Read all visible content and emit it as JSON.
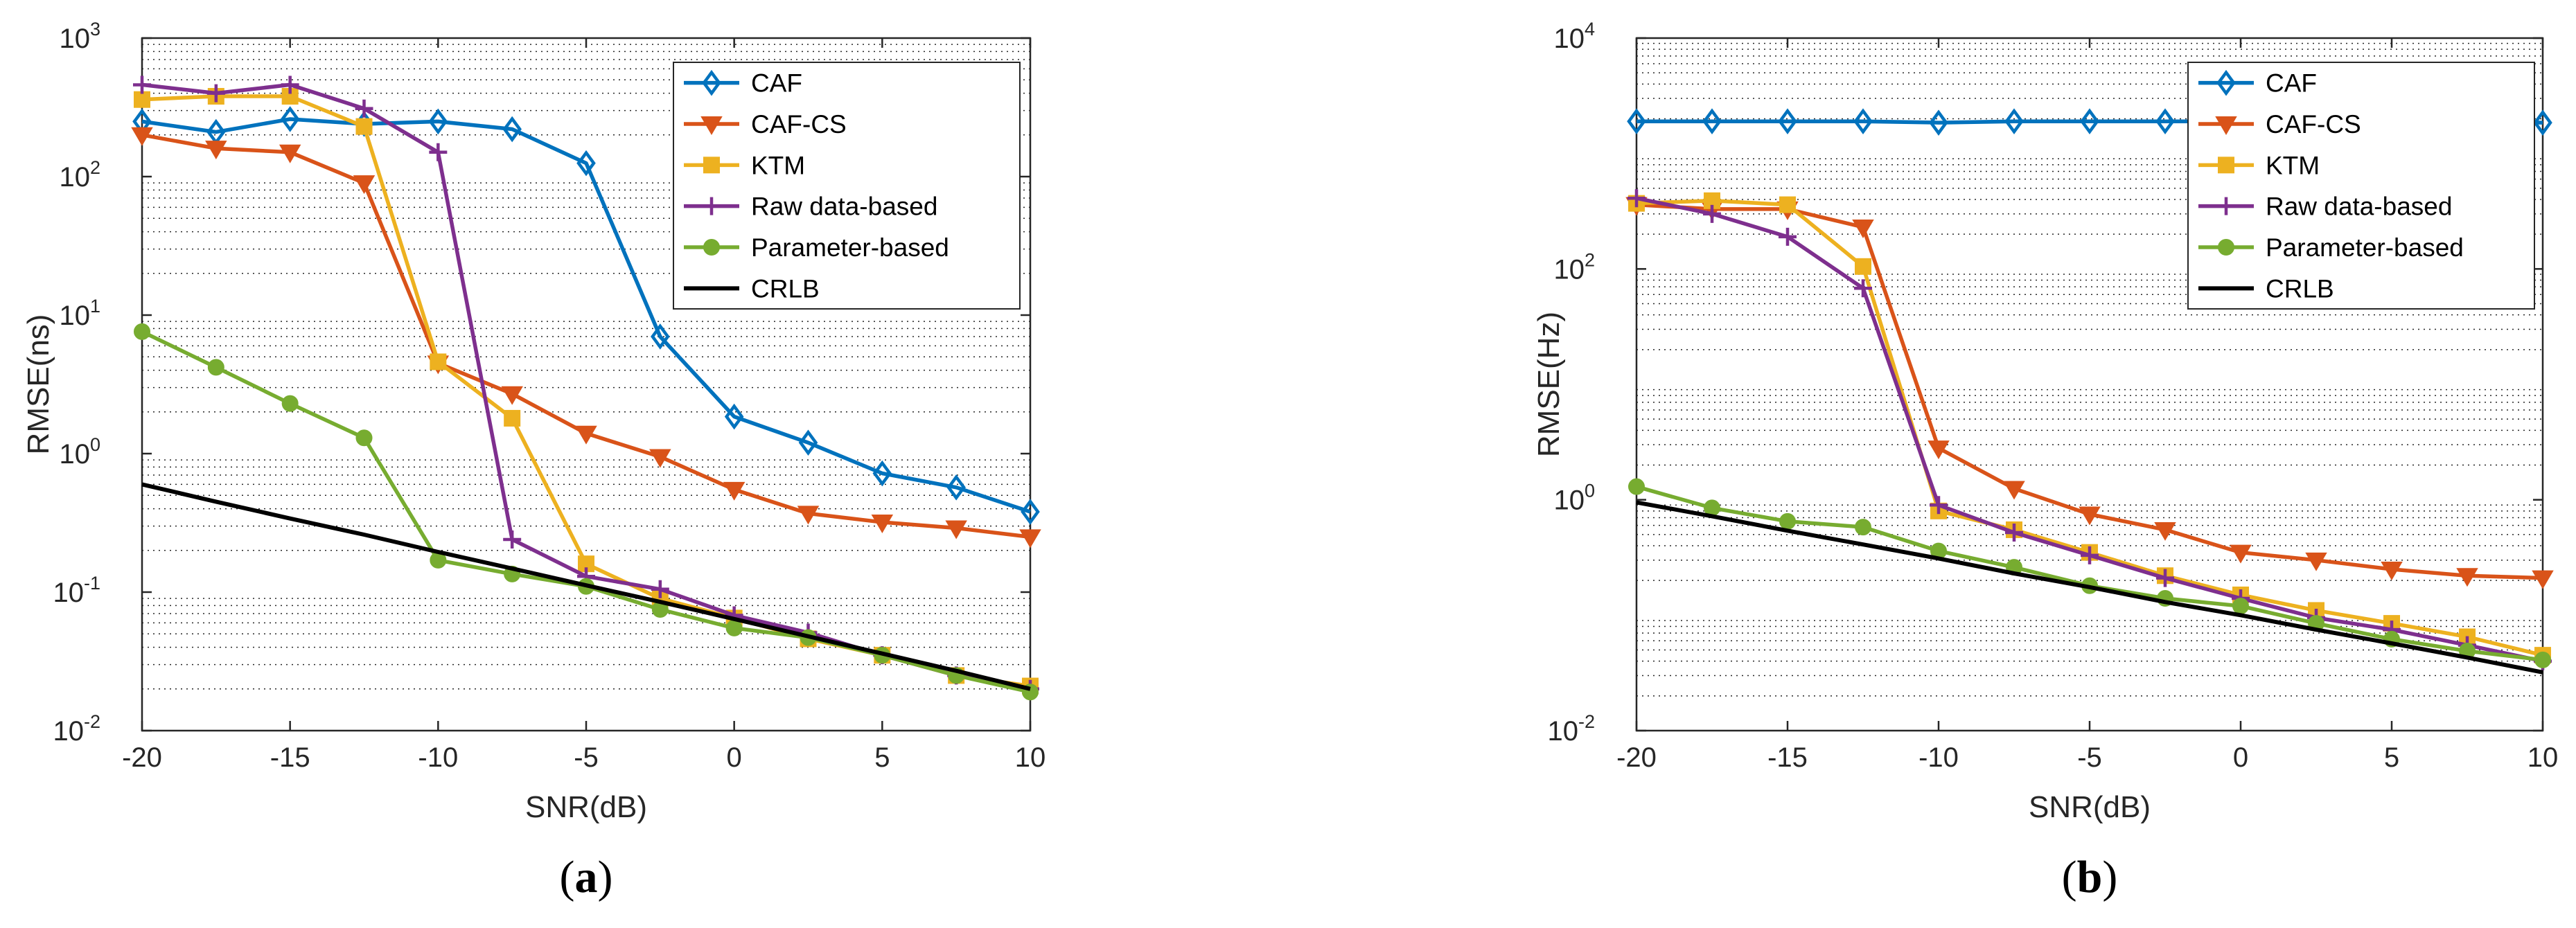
{
  "figure": {
    "panels": [
      "a",
      "b"
    ]
  },
  "chart_data": [
    {
      "type": "line",
      "panel": "a",
      "caption": "a",
      "xlabel": "SNR(dB)",
      "ylabel": "RMSE(ns)",
      "yscale": "log",
      "xlim": [
        -20,
        10
      ],
      "ylim": [
        0.01,
        1000
      ],
      "xticks": [
        "-20",
        "-15",
        "-10",
        "-5",
        "0",
        "5",
        "10"
      ],
      "yticks": [
        {
          "base": "10",
          "exp": "-2"
        },
        {
          "base": "10",
          "exp": "-1"
        },
        {
          "base": "10",
          "exp": "0"
        },
        {
          "base": "10",
          "exp": "1"
        },
        {
          "base": "10",
          "exp": "2"
        },
        {
          "base": "10",
          "exp": "3"
        }
      ],
      "grid": "minor dotted",
      "legend_position": "top-right",
      "x": [
        -20,
        -17.5,
        -15,
        -12.5,
        -10,
        -7.5,
        -5,
        -2.5,
        0,
        2.5,
        5,
        7.5,
        10
      ],
      "series": [
        {
          "name": "CAF",
          "color": "#0072BD",
          "marker": "diamond",
          "values": [
            250,
            210,
            260,
            240,
            250,
            220,
            125,
            7,
            1.85,
            1.2,
            0.72,
            0.57,
            0.38
          ]
        },
        {
          "name": "CAF-CS",
          "color": "#D95319",
          "marker": "triangle-down",
          "values": [
            200,
            160,
            150,
            90,
            4.5,
            2.7,
            1.4,
            0.95,
            0.55,
            0.37,
            0.32,
            0.29,
            0.25
          ]
        },
        {
          "name": "KTM",
          "color": "#EDB120",
          "marker": "square",
          "values": [
            360,
            380,
            380,
            230,
            4.6,
            1.8,
            0.16,
            0.09,
            0.065,
            0.046,
            0.035,
            0.025,
            0.021
          ]
        },
        {
          "name": "Raw data-based",
          "color": "#7E2F8E",
          "marker": "plus",
          "values": [
            460,
            400,
            460,
            310,
            150,
            0.24,
            0.13,
            0.105,
            0.068,
            0.051,
            0.035,
            0.025,
            0.02
          ]
        },
        {
          "name": "Parameter-based",
          "color": "#77AC30",
          "marker": "circle",
          "values": [
            7.6,
            4.2,
            2.3,
            1.3,
            0.17,
            0.135,
            0.11,
            0.075,
            0.055,
            0.047,
            0.035,
            0.025,
            0.019
          ]
        },
        {
          "name": "CRLB",
          "color": "#000000",
          "marker": "none",
          "values": [
            0.6,
            0.45,
            0.34,
            0.26,
            0.195,
            0.148,
            0.112,
            0.085,
            0.064,
            0.048,
            0.036,
            0.027,
            0.02
          ]
        }
      ]
    },
    {
      "type": "line",
      "panel": "b",
      "caption": "b",
      "xlabel": "SNR(dB)",
      "ylabel": "RMSE(Hz)",
      "yscale": "log",
      "xlim": [
        -20,
        10
      ],
      "ylim": [
        0.01,
        10000
      ],
      "xticks": [
        "-20",
        "-15",
        "-10",
        "-5",
        "0",
        "5",
        "10"
      ],
      "yticks": [
        {
          "base": "10",
          "exp": "-2"
        },
        {
          "base": "10",
          "exp": "0"
        },
        {
          "base": "10",
          "exp": "2"
        },
        {
          "base": "10",
          "exp": "4"
        }
      ],
      "grid": "minor dotted",
      "legend_position": "top-right",
      "x": [
        -20,
        -17.5,
        -15,
        -12.5,
        -10,
        -7.5,
        -5,
        -2.5,
        0,
        2.5,
        5,
        7.5,
        10
      ],
      "series": [
        {
          "name": "CAF",
          "color": "#0072BD",
          "marker": "diamond",
          "values": [
            1900,
            1900,
            1900,
            1900,
            1850,
            1900,
            1900,
            1900,
            1900,
            1900,
            1900,
            1900,
            1850
          ]
        },
        {
          "name": "CAF-CS",
          "color": "#D95319",
          "marker": "triangle-down",
          "values": [
            360,
            330,
            330,
            230,
            2.8,
            1.25,
            0.75,
            0.55,
            0.35,
            0.3,
            0.25,
            0.22,
            0.21
          ]
        },
        {
          "name": "KTM",
          "color": "#EDB120",
          "marker": "square",
          "values": [
            370,
            390,
            360,
            105,
            0.8,
            0.55,
            0.35,
            0.22,
            0.15,
            0.11,
            0.085,
            0.065,
            0.045
          ]
        },
        {
          "name": "Raw data-based",
          "color": "#7E2F8E",
          "marker": "plus",
          "values": [
            410,
            300,
            190,
            68,
            0.9,
            0.52,
            0.33,
            0.21,
            0.14,
            0.095,
            0.075,
            0.055,
            0.04
          ]
        },
        {
          "name": "Parameter-based",
          "color": "#77AC30",
          "marker": "circle",
          "values": [
            1.3,
            0.85,
            0.65,
            0.58,
            0.36,
            0.26,
            0.18,
            0.14,
            0.12,
            0.085,
            0.062,
            0.049,
            0.041
          ]
        },
        {
          "name": "CRLB",
          "color": "#000000",
          "marker": "none",
          "values": [
            0.95,
            0.72,
            0.54,
            0.41,
            0.31,
            0.23,
            0.175,
            0.13,
            0.1,
            0.075,
            0.057,
            0.043,
            0.032
          ]
        }
      ]
    }
  ]
}
